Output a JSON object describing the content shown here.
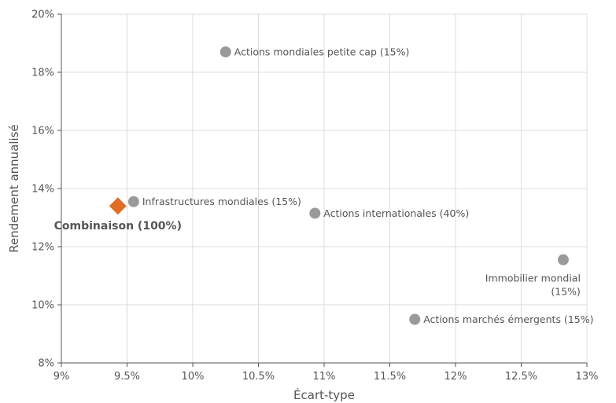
{
  "chart_data": {
    "type": "scatter",
    "xlabel": "Écart-type",
    "ylabel": "Rendement annualisé",
    "xlim": [
      9,
      13
    ],
    "ylim": [
      8,
      20
    ],
    "x_ticks": [
      9,
      9.5,
      10,
      10.5,
      11,
      11.5,
      12,
      12.5,
      13
    ],
    "x_tick_labels": [
      "9%",
      "9.5%",
      "10%",
      "10.5%",
      "11%",
      "11.5%",
      "12%",
      "12.5%",
      "13%"
    ],
    "y_ticks": [
      8,
      10,
      12,
      14,
      16,
      18,
      20
    ],
    "y_tick_labels": [
      "8%",
      "10%",
      "12%",
      "14%",
      "16%",
      "18%",
      "20%"
    ],
    "grid": true,
    "points": [
      {
        "label": "Actions mondiales petite cap (15%)",
        "label_lines": [
          "Actions mondiales petite cap (15%)"
        ],
        "x": 10.25,
        "y": 18.7,
        "color": "#9a9a9a",
        "marker": "circle",
        "label_pos": "right"
      },
      {
        "label": "Infrastructures mondiales (15%)",
        "label_lines": [
          "Infrastructures mondiales (15%)"
        ],
        "x": 9.55,
        "y": 13.55,
        "color": "#9a9a9a",
        "marker": "circle",
        "label_pos": "right"
      },
      {
        "label": "Actions internationales (40%)",
        "label_lines": [
          "Actions internationales (40%)"
        ],
        "x": 10.93,
        "y": 13.15,
        "color": "#9a9a9a",
        "marker": "circle",
        "label_pos": "right"
      },
      {
        "label": "Immobilier mondial (15%)",
        "label_lines": [
          "Immobilier mondial",
          "(15%)"
        ],
        "x": 12.82,
        "y": 11.55,
        "color": "#9a9a9a",
        "marker": "circle",
        "label_pos": "below-left"
      },
      {
        "label": "Actions marchés émergents (15%)",
        "label_lines": [
          "Actions marchés émergents (15%)"
        ],
        "x": 11.69,
        "y": 9.5,
        "color": "#9a9a9a",
        "marker": "circle",
        "label_pos": "right"
      },
      {
        "label": "Combinaison (100%)",
        "label_lines": [
          "Combinaison (100%)"
        ],
        "x": 9.43,
        "y": 13.4,
        "color": "#e06c25",
        "marker": "diamond",
        "label_pos": "below",
        "bold": true
      }
    ]
  }
}
